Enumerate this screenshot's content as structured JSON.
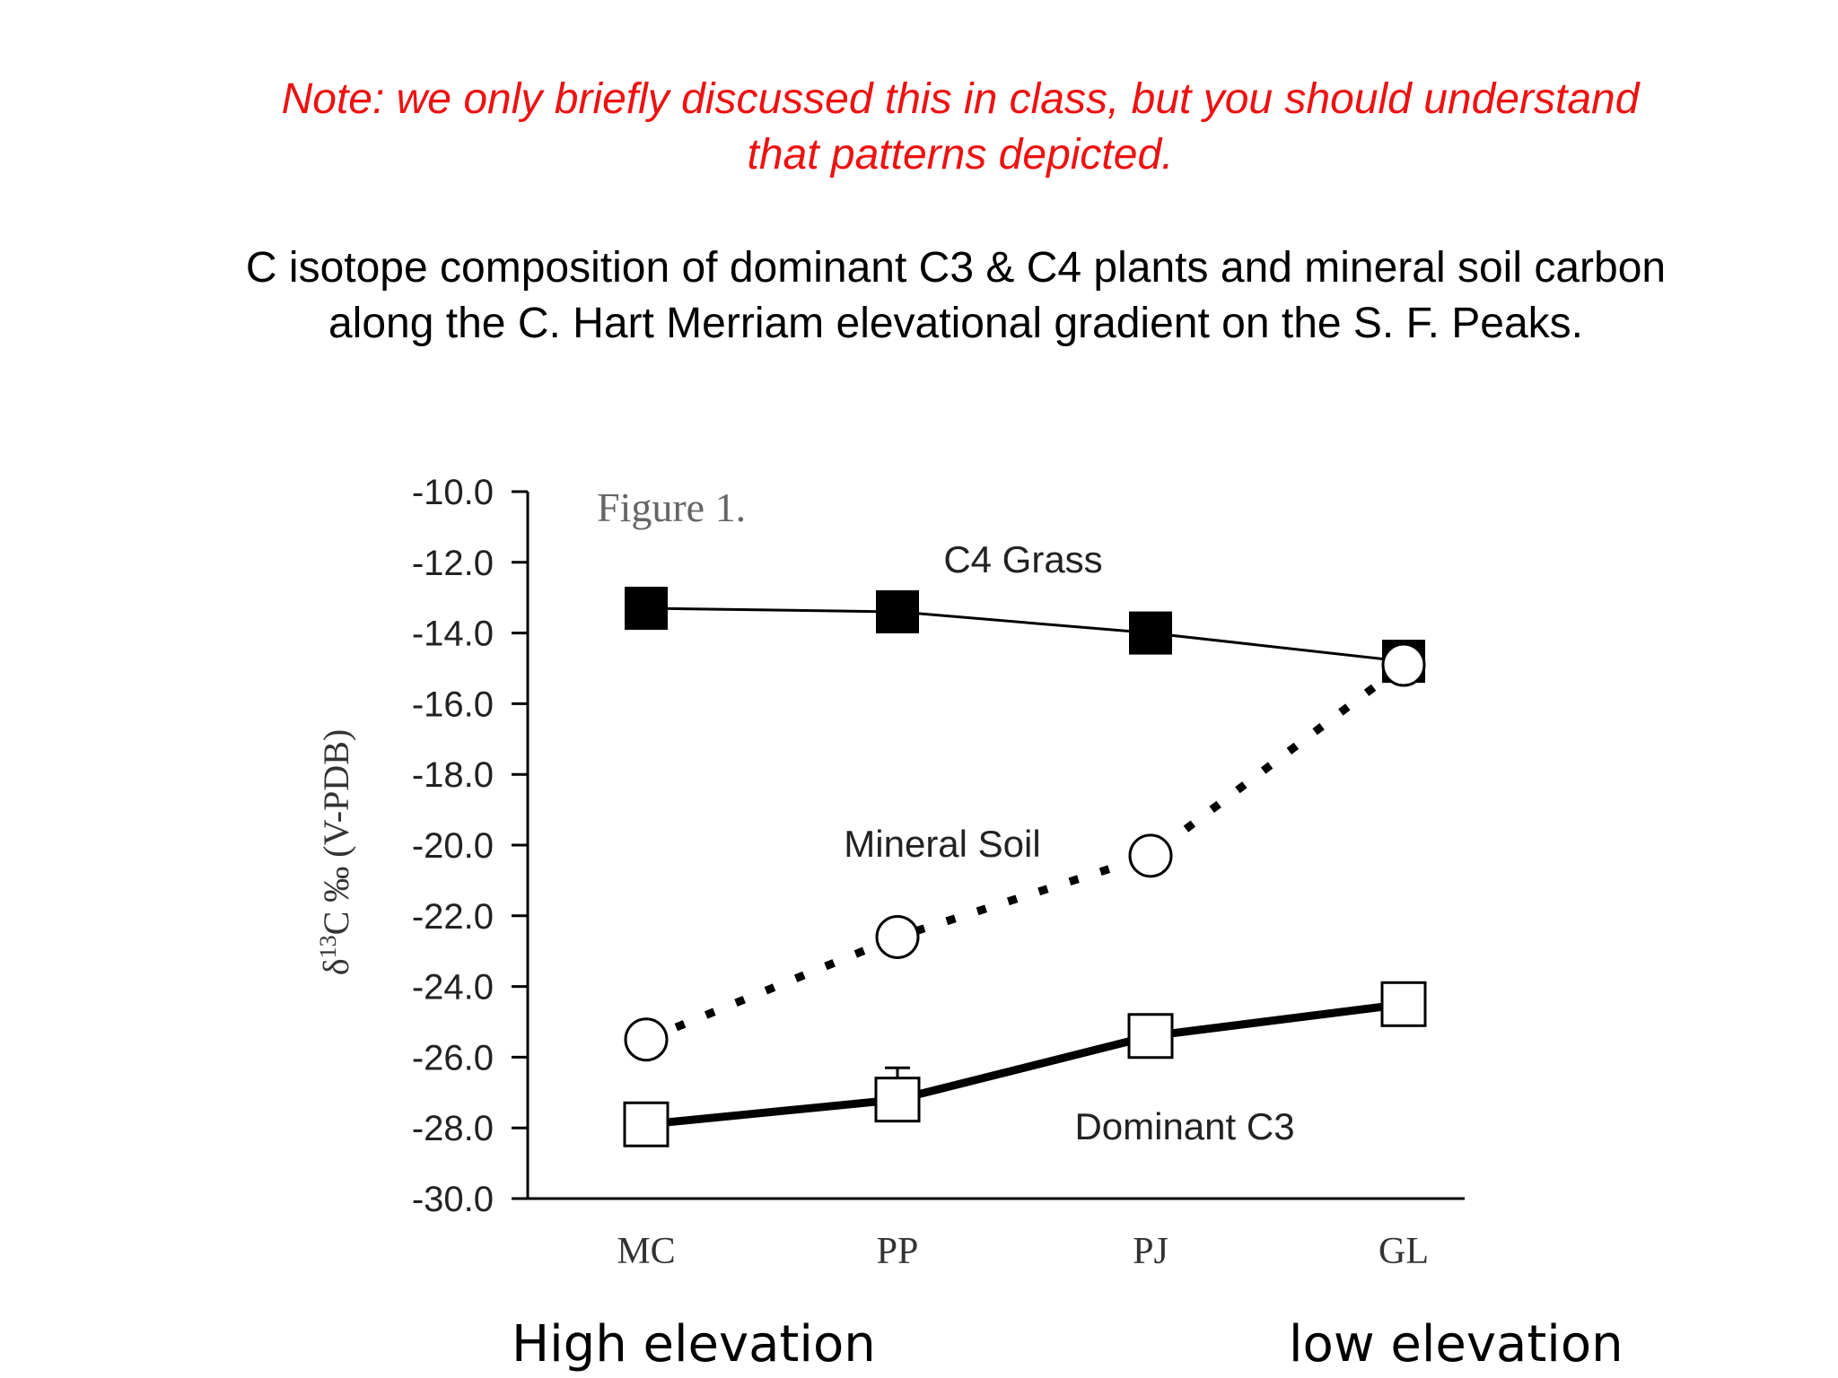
{
  "note": {
    "line1": "Note: we only briefly discussed this in class, but you should understand",
    "line2": "that patterns depicted."
  },
  "caption": {
    "line1": "C isotope composition of dominant C3 & C4 plants and mineral soil carbon",
    "line2": "along the C. Hart Merriam elevational gradient on the S. F. Peaks."
  },
  "elevation_labels": {
    "left": "High elevation",
    "right": "low elevation"
  },
  "chart_data": {
    "type": "line",
    "title": "Figure 1.",
    "ylabel_prefix": "δ",
    "ylabel_superscript": "13",
    "ylabel_rest": "C ‰ (V-PDB)",
    "categories": [
      "MC",
      "PP",
      "PJ",
      "GL"
    ],
    "ylim": [
      -30.0,
      -10.0
    ],
    "yticks": [
      "-10.0",
      "-12.0",
      "-14.0",
      "-16.0",
      "-18.0",
      "-20.0",
      "-22.0",
      "-24.0",
      "-26.0",
      "-28.0",
      "-30.0"
    ],
    "series": [
      {
        "name": "C4 Grass",
        "values": [
          -13.3,
          -13.4,
          -14.0,
          -14.8
        ],
        "marker": "filled-square",
        "line": "thin-solid",
        "color": "#000000"
      },
      {
        "name": "Mineral Soil",
        "values": [
          -25.5,
          -22.6,
          -20.3,
          -14.9
        ],
        "marker": "open-circle",
        "line": "dashed-thick",
        "color": "#000000"
      },
      {
        "name": "Dominant C3",
        "values": [
          -27.9,
          -27.2,
          -25.4,
          -24.5
        ],
        "marker": "open-square",
        "line": "thick-solid",
        "color": "#000000"
      }
    ],
    "error_bars": [
      {
        "series": "Dominant C3",
        "category": "PP",
        "low": -27.8,
        "high": -26.3
      }
    ],
    "grid": false,
    "legend": "inline-labels"
  }
}
